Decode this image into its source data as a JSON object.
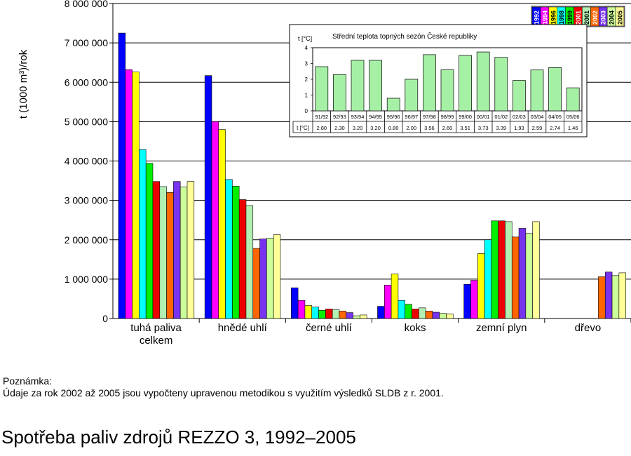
{
  "chart_data": {
    "type": "bar",
    "ylabel": "t (1000 m³)/rok",
    "ylim": [
      0,
      8000000
    ],
    "y_ticks": [
      "0",
      "1 000 000",
      "2 000 000",
      "3 000 000",
      "4 000 000",
      "5 000 000",
      "6 000 000",
      "7 000 000",
      "8 000 000"
    ],
    "grid": true,
    "legend_position": "top-right",
    "categories": [
      "tuhá paliva celkem",
      "hnědé uhlí",
      "černé uhlí",
      "koks",
      "zemní plyn",
      "dřevo"
    ],
    "series": [
      {
        "name": "1992",
        "color": "#0000ff",
        "values": [
          7250000,
          6170000,
          780000,
          310000,
          870000,
          0
        ]
      },
      {
        "name": "1994",
        "color": "#ff00ff",
        "values": [
          6320000,
          5000000,
          460000,
          850000,
          970000,
          0
        ]
      },
      {
        "name": "1996",
        "color": "#ffff00",
        "values": [
          6260000,
          4800000,
          330000,
          1130000,
          1650000,
          0
        ]
      },
      {
        "name": "1998",
        "color": "#00ffff",
        "values": [
          4290000,
          3530000,
          290000,
          460000,
          2000000,
          0
        ]
      },
      {
        "name": "1999",
        "color": "#00ee00",
        "values": [
          3940000,
          3360000,
          210000,
          360000,
          2480000,
          0
        ]
      },
      {
        "name": "2001",
        "color": "#ee0000",
        "values": [
          3480000,
          3020000,
          240000,
          240000,
          2480000,
          0
        ]
      },
      {
        "name": "2001",
        "color": "#b3efb3",
        "values": [
          3350000,
          2870000,
          220000,
          270000,
          2460000,
          0
        ]
      },
      {
        "name": "2002",
        "color": "#ff6600",
        "values": [
          3200000,
          1780000,
          190000,
          190000,
          2070000,
          1060000
        ]
      },
      {
        "name": "2003",
        "color": "#7733ee",
        "values": [
          3480000,
          2020000,
          150000,
          160000,
          2290000,
          1180000
        ]
      },
      {
        "name": "2004",
        "color": "#ccff99",
        "values": [
          3340000,
          2040000,
          70000,
          130000,
          2160000,
          1090000
        ]
      },
      {
        "name": "2005",
        "color": "#ffff99",
        "values": [
          3480000,
          2130000,
          90000,
          110000,
          2460000,
          1160000
        ]
      }
    ],
    "inset": {
      "type": "bar",
      "title": "Střední teplota topných sezón České republiky",
      "ylabel": "t [°C]",
      "table_row_label": "t [°C]",
      "ylim": [
        0,
        4
      ],
      "y_ticks": [
        "0",
        "1",
        "2",
        "3",
        "4"
      ],
      "bar_color": "#a6f0a6",
      "categories": [
        "91/92",
        "92/93",
        "93/94",
        "94/95",
        "95/96",
        "96/97",
        "97/98",
        "98/99",
        "99/00",
        "00/01",
        "01/02",
        "02/03",
        "03/04",
        "04/05",
        "05/06"
      ],
      "values": [
        2.8,
        2.3,
        3.2,
        3.2,
        0.8,
        2.0,
        3.56,
        2.6,
        3.51,
        3.73,
        3.39,
        1.93,
        2.59,
        2.74,
        1.46
      ],
      "value_labels": [
        "2.80",
        "2.30",
        "3.20",
        "3.20",
        "0.80",
        "2.00",
        "3.56",
        "2.60",
        "3.51",
        "3.73",
        "3.39",
        "1.93",
        "2.59",
        "2.74",
        "1.46"
      ]
    }
  },
  "note": {
    "title": "Poznámka:",
    "text": "Údaje za rok 2002 až 2005 jsou vypočteny upravenou metodikou s využitím výsledků SLDB z r. 2001."
  },
  "page_title": "Spotřeba paliv zdrojů REZZO 3, 1992–2005"
}
